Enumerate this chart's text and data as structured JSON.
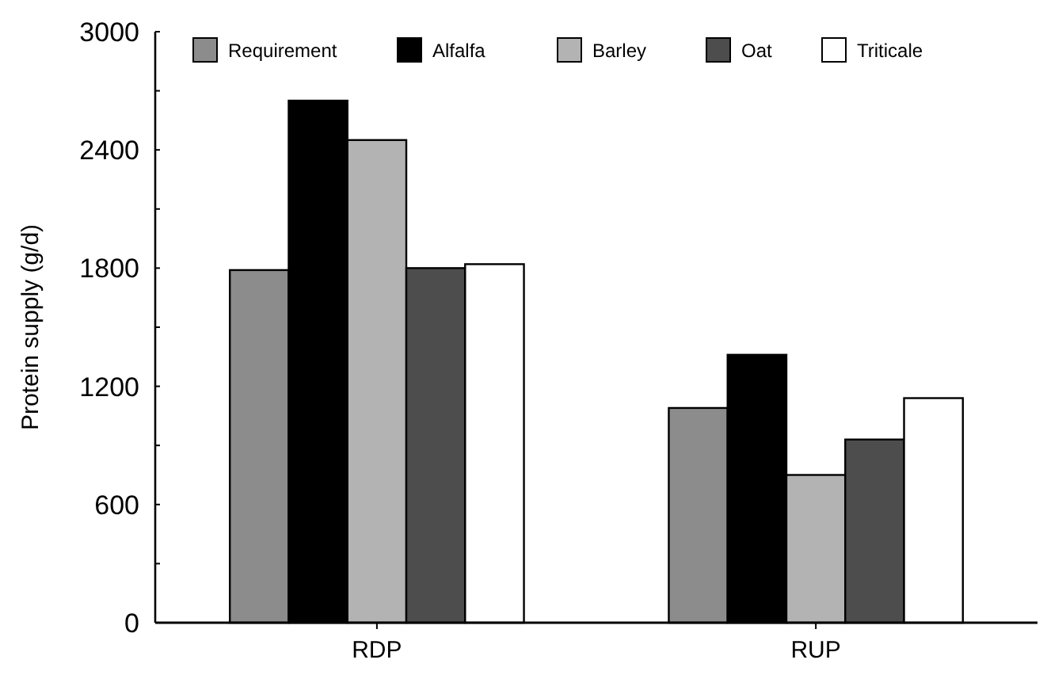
{
  "chart_data": {
    "type": "bar",
    "ylabel": "Protein supply (g/d)",
    "categories": [
      "RDP",
      "RUP"
    ],
    "series": [
      {
        "name": "Requirement",
        "color": "#8c8c8c",
        "values": [
          1790,
          1090
        ]
      },
      {
        "name": "Alfalfa",
        "color": "#000000",
        "values": [
          2650,
          1360
        ]
      },
      {
        "name": "Barley",
        "color": "#b3b3b3",
        "values": [
          2450,
          750
        ]
      },
      {
        "name": "Oat",
        "color": "#4d4d4d",
        "values": [
          1800,
          930
        ]
      },
      {
        "name": "Triticale",
        "color": "#ffffff",
        "values": [
          1820,
          1140
        ]
      }
    ],
    "ylim": [
      0,
      3000
    ],
    "yticks": [
      0,
      {
        "value": 300,
        "label": null
      },
      600,
      {
        "value": 900,
        "label": null
      },
      1200,
      {
        "value": 1500,
        "label": null
      },
      1800,
      {
        "value": 2100,
        "label": null
      },
      2400,
      {
        "value": 2700,
        "label": null
      },
      3000
    ],
    "legend": "top",
    "grid": false
  }
}
